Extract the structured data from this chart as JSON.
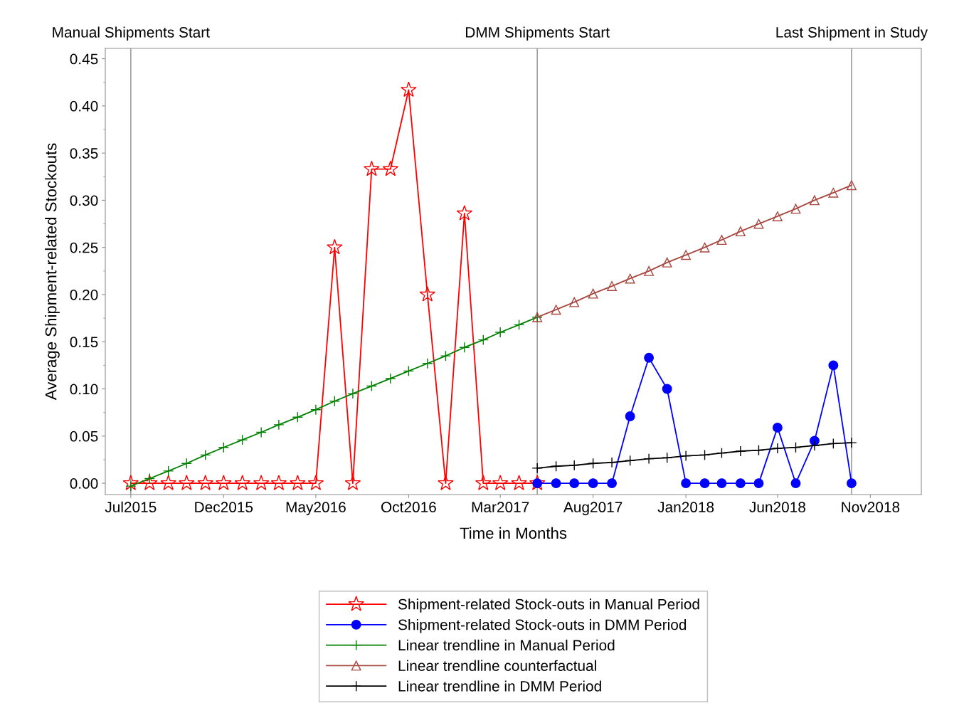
{
  "chart_data": {
    "type": "line",
    "xlabel": "Time in Months",
    "ylabel": "Average Shipment-related Stockouts",
    "xlim": [
      "2015-05-20",
      "2019-01-24"
    ],
    "ylim": [
      -0.012,
      0.461
    ],
    "xticks": [
      {
        "value": "2015-07",
        "label": "Jul2015"
      },
      {
        "value": "2015-12",
        "label": "Dec2015"
      },
      {
        "value": "2016-05",
        "label": "May2016"
      },
      {
        "value": "2016-10",
        "label": "Oct2016"
      },
      {
        "value": "2017-03",
        "label": "Mar2017"
      },
      {
        "value": "2017-08",
        "label": "Aug2017"
      },
      {
        "value": "2018-01",
        "label": "Jan2018"
      },
      {
        "value": "2018-06",
        "label": "Jun2018"
      },
      {
        "value": "2018-11",
        "label": "Nov2018"
      }
    ],
    "yticks": [
      {
        "value": 0,
        "label": "0.00"
      },
      {
        "value": 0.05,
        "label": "0.05"
      },
      {
        "value": 0.1,
        "label": "0.10"
      },
      {
        "value": 0.15,
        "label": "0.15"
      },
      {
        "value": 0.2,
        "label": "0.20"
      },
      {
        "value": 0.25,
        "label": "0.25"
      },
      {
        "value": 0.3,
        "label": "0.30"
      },
      {
        "value": 0.35,
        "label": "0.35"
      },
      {
        "value": 0.4,
        "label": "0.40"
      },
      {
        "value": 0.45,
        "label": "0.45"
      }
    ],
    "grid": false,
    "legend": "bottom",
    "ref_lines": [
      {
        "axis": "x",
        "value": "2015-07",
        "label": "Manual Shipments Start",
        "color": "#a0a0a0"
      },
      {
        "axis": "x",
        "value": "2017-05",
        "label": "DMM Shipments Start",
        "color": "#a0a0a0"
      },
      {
        "axis": "x",
        "value": "2018-10",
        "label": "Last Shipment in Study",
        "color": "#a0a0a0"
      }
    ],
    "series": [
      {
        "name": "Shipment-related Stock-outs in Manual Period",
        "color": "#ff0000",
        "marker": "star",
        "x": [
          "2015-07",
          "2015-08",
          "2015-09",
          "2015-10",
          "2015-11",
          "2015-12",
          "2016-01",
          "2016-02",
          "2016-03",
          "2016-04",
          "2016-05",
          "2016-06",
          "2016-07",
          "2016-08",
          "2016-09",
          "2016-10",
          "2016-11",
          "2016-12",
          "2017-01",
          "2017-02",
          "2017-03",
          "2017-04",
          "2017-05"
        ],
        "values": [
          0,
          0,
          0,
          0,
          0,
          0,
          0,
          0,
          0,
          0,
          0,
          0.25,
          0,
          0.333,
          0.333,
          0.417,
          0.2,
          0,
          0.286,
          0,
          0,
          0,
          0
        ]
      },
      {
        "name": "Shipment-related Stock-outs in DMM Period",
        "color": "#0000ff",
        "marker": "circle",
        "x": [
          "2017-05",
          "2017-06",
          "2017-07",
          "2017-08",
          "2017-09",
          "2017-10",
          "2017-11",
          "2017-12",
          "2018-01",
          "2018-02",
          "2018-03",
          "2018-04",
          "2018-05",
          "2018-06",
          "2018-07",
          "2018-08",
          "2018-09",
          "2018-10"
        ],
        "values": [
          0,
          0,
          0,
          0,
          0,
          0.071,
          0.133,
          0.1,
          0,
          0,
          0,
          0,
          0,
          0.059,
          0,
          0.045,
          0.125,
          0
        ]
      },
      {
        "name": "Linear trendline in Manual Period",
        "color": "#008000",
        "marker": "cross",
        "x": [
          "2015-07",
          "2015-08",
          "2015-09",
          "2015-10",
          "2015-11",
          "2015-12",
          "2016-01",
          "2016-02",
          "2016-03",
          "2016-04",
          "2016-05",
          "2016-06",
          "2016-07",
          "2016-08",
          "2016-09",
          "2016-10",
          "2016-11",
          "2016-12",
          "2017-01",
          "2017-02",
          "2017-03",
          "2017-04",
          "2017-05"
        ],
        "values": [
          -0.003,
          0.005,
          0.013,
          0.021,
          0.03,
          0.038,
          0.046,
          0.054,
          0.062,
          0.07,
          0.078,
          0.087,
          0.095,
          0.103,
          0.111,
          0.119,
          0.127,
          0.135,
          0.144,
          0.152,
          0.16,
          0.168,
          0.176
        ]
      },
      {
        "name": "Linear trendline counterfactual",
        "color": "#a84840",
        "marker": "triangle",
        "x": [
          "2017-05",
          "2017-06",
          "2017-07",
          "2017-08",
          "2017-09",
          "2017-10",
          "2017-11",
          "2017-12",
          "2018-01",
          "2018-02",
          "2018-03",
          "2018-04",
          "2018-05",
          "2018-06",
          "2018-07",
          "2018-08",
          "2018-09",
          "2018-10"
        ],
        "values": [
          0.176,
          0.184,
          0.192,
          0.201,
          0.209,
          0.217,
          0.225,
          0.234,
          0.242,
          0.25,
          0.258,
          0.267,
          0.275,
          0.283,
          0.291,
          0.3,
          0.308,
          0.316
        ]
      },
      {
        "name": "Linear trendline in DMM Period",
        "color": "#000000",
        "marker": "cross",
        "x": [
          "2017-05",
          "2017-06",
          "2017-07",
          "2017-08",
          "2017-09",
          "2017-10",
          "2017-11",
          "2017-12",
          "2018-01",
          "2018-02",
          "2018-03",
          "2018-04",
          "2018-05",
          "2018-06",
          "2018-07",
          "2018-08",
          "2018-09",
          "2018-10"
        ],
        "values": [
          0.016,
          0.018,
          0.019,
          0.021,
          0.022,
          0.024,
          0.026,
          0.027,
          0.029,
          0.03,
          0.032,
          0.034,
          0.035,
          0.037,
          0.038,
          0.04,
          0.042,
          0.043
        ]
      }
    ]
  }
}
